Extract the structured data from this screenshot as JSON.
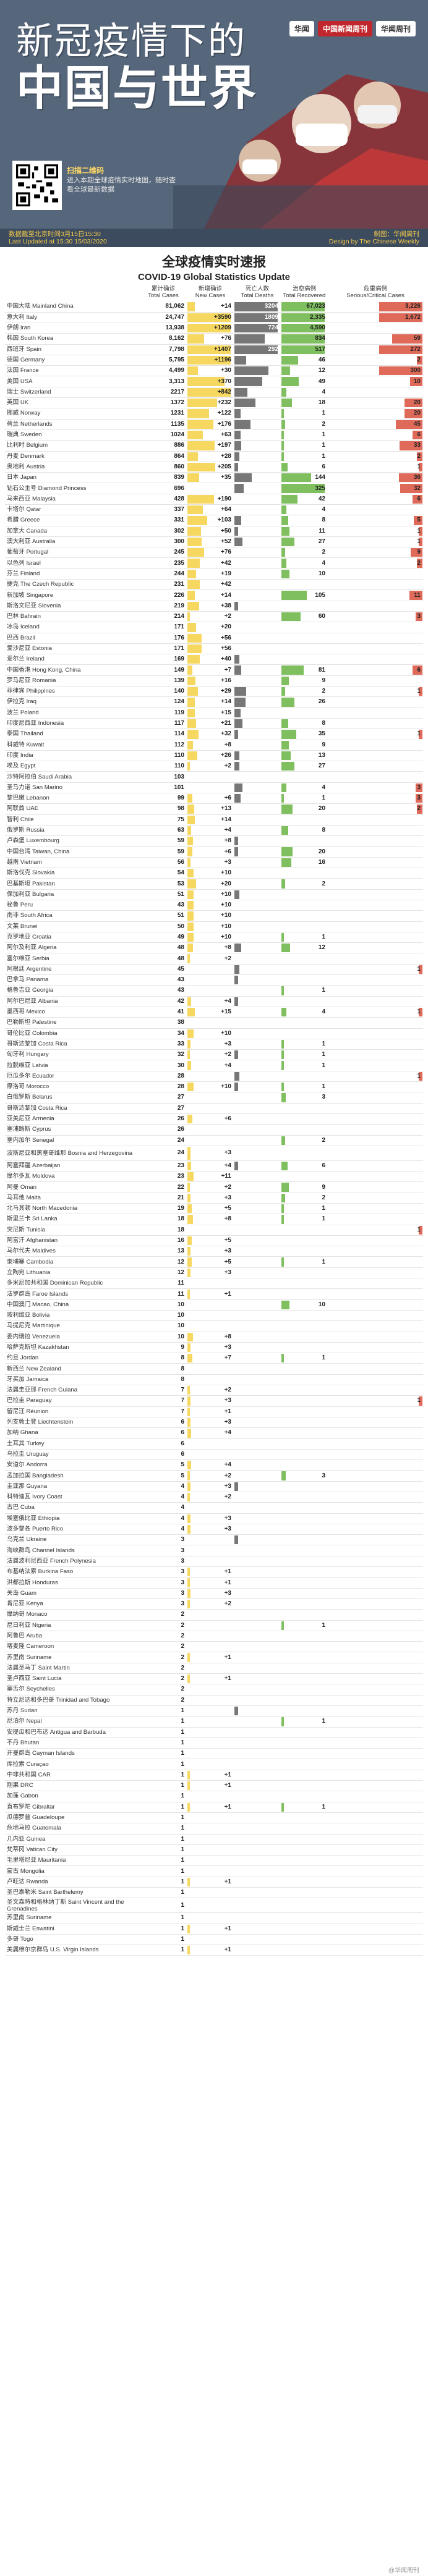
{
  "banner": {
    "title_line1": "新冠疫情下的",
    "title_line2": "中国与世界",
    "publishers": [
      "华闻",
      "中国新闻周刊",
      "华闻周刊"
    ],
    "qr_caption_head": "扫描二维码",
    "qr_caption_body": "进入本期全球疫情实时地图，随时查看全球最新数据",
    "last_update_cn": "数据截至北京时间3月15日15:30",
    "last_update_en": "Last Updated at 15:30 15/03/2020",
    "credit_cn": "制图：华闻周刊",
    "credit_en": "Design by The Chinese Weekly"
  },
  "heading": {
    "cn": "全球疫情实时速报",
    "en": "COVID-19 Global Statistics Update"
  },
  "columns": {
    "total": [
      "累计确诊",
      "Total Cases"
    ],
    "new": [
      "新增确诊",
      "New Cases"
    ],
    "deaths": [
      "死亡人数",
      "Total Deaths"
    ],
    "recovered": [
      "治愈病例",
      "Total Recovered"
    ],
    "serious": [
      "危重病例",
      "Serious/Critical Cases"
    ]
  },
  "colors": {
    "total": "#f6d860",
    "new": "#f6d860",
    "deaths": "#777777",
    "recovered": "#7fbf5f",
    "serious": "#e06a5a"
  },
  "footer": "@华闻周刊",
  "chart_data": {
    "type": "table",
    "title": "全球疫情实时速报 COVID-19 Global Statistics Update",
    "columns": [
      "Total Cases",
      "New Cases",
      "Total Deaths",
      "Total Recovered",
      "Serious/Critical Cases"
    ],
    "rows": [
      [
        "中国大陆 Mainland China",
        "81,062",
        "+14",
        "3204",
        "67,023",
        "3,226"
      ],
      [
        "意大利 Italy",
        "24,747",
        "+3590",
        "1809",
        "2,335",
        "1,672"
      ],
      [
        "伊朗 Iran",
        "13,938",
        "+1209",
        "724",
        "4,590",
        ""
      ],
      [
        "韩国 South Korea",
        "8,162",
        "+76",
        "75",
        "834",
        "59"
      ],
      [
        "西班牙 Spain",
        "7,798",
        "+1407",
        "292",
        "517",
        "272"
      ],
      [
        "德国 Germany",
        "5,795",
        "+1196",
        "11",
        "46",
        "2"
      ],
      [
        "法国 France",
        "4,499",
        "+30",
        "91",
        "12",
        "300"
      ],
      [
        "美国 USA",
        "3,313",
        "+370",
        "63",
        "49",
        "10"
      ],
      [
        "瑞士 Switzerland",
        "2217",
        "+842",
        "14",
        "4",
        ""
      ],
      [
        "英国 UK",
        "1372",
        "+232",
        "35",
        "18",
        "20"
      ],
      [
        "挪威 Norway",
        "1231",
        "+122",
        "3",
        "1",
        "20"
      ],
      [
        "荷兰 Netherlands",
        "1135",
        "+176",
        "20",
        "2",
        "45"
      ],
      [
        "瑞典 Sweden",
        "1024",
        "+63",
        "3",
        "1",
        "6"
      ],
      [
        "比利时 Belgium",
        "886",
        "+197",
        "4",
        "1",
        "33"
      ],
      [
        "丹麦 Denmark",
        "864",
        "+28",
        "2",
        "1",
        "2"
      ],
      [
        "奥地利 Austria",
        "860",
        "+205",
        "1",
        "6",
        "1"
      ],
      [
        "日本 Japan",
        "839",
        "+35",
        "24",
        "144",
        "36"
      ],
      [
        "钻石公主号 Diamond Princess",
        "696",
        "",
        "7",
        "325",
        "32"
      ],
      [
        "马来西亚 Malaysia",
        "428",
        "+190",
        "",
        "42",
        "6"
      ],
      [
        "卡塔尔 Qatar",
        "337",
        "+64",
        "",
        "4",
        ""
      ],
      [
        "希腊 Greece",
        "331",
        "+103",
        "4",
        "8",
        "5"
      ],
      [
        "加拿大 Canada",
        "302",
        "+50",
        "1",
        "11",
        "1"
      ],
      [
        "澳大利亚 Australia",
        "300",
        "+52",
        "5",
        "27",
        "1"
      ],
      [
        "葡萄牙 Portugal",
        "245",
        "+76",
        "",
        "2",
        "9"
      ],
      [
        "以色列 Israel",
        "235",
        "+42",
        "",
        "4",
        "2"
      ],
      [
        "芬兰 Finland",
        "244",
        "+19",
        "",
        "10",
        ""
      ],
      [
        "捷克 The Czech Republic",
        "231",
        "+42",
        "",
        "",
        ""
      ],
      [
        "新加坡 Singapore",
        "226",
        "+14",
        "",
        "105",
        "11"
      ],
      [
        "斯洛文尼亚 Slovenia",
        "219",
        "+38",
        "1",
        "",
        ""
      ],
      [
        "巴林 Bahrain",
        "214",
        "+2",
        "",
        "60",
        "3"
      ],
      [
        "冰岛 Iceland",
        "171",
        "+20",
        "",
        "",
        ""
      ],
      [
        "巴西 Brazil",
        "176",
        "+56",
        "",
        "",
        ""
      ],
      [
        "爱沙尼亚 Estonia",
        "171",
        "+56",
        "",
        "",
        ""
      ],
      [
        "爱尔兰 Ireland",
        "169",
        "+40",
        "2",
        "",
        ""
      ],
      [
        "中国香港 Hong Kong, China",
        "149",
        "+7",
        "4",
        "81",
        "6"
      ],
      [
        "罗马尼亚 Romania",
        "139",
        "+16",
        "",
        "9",
        ""
      ],
      [
        "菲律宾 Philippines",
        "140",
        "+29",
        "11",
        "2",
        "1"
      ],
      [
        "伊拉克 Iraq",
        "124",
        "+14",
        "10",
        "26",
        ""
      ],
      [
        "波兰 Poland",
        "119",
        "+15",
        "3",
        "",
        ""
      ],
      [
        "印度尼西亚 Indonesia",
        "117",
        "+21",
        "5",
        "8",
        ""
      ],
      [
        "泰国 Thailand",
        "114",
        "+32",
        "1",
        "35",
        "1"
      ],
      [
        "科威特 Kuwait",
        "112",
        "+8",
        "",
        "9",
        ""
      ],
      [
        "印度 India",
        "110",
        "+26",
        "2",
        "13",
        ""
      ],
      [
        "埃及 Egypt",
        "110",
        "+2",
        "2",
        "27",
        ""
      ],
      [
        "沙特阿拉伯 Saudi Arabia",
        "103",
        "",
        "",
        "",
        ""
      ],
      [
        "圣马力诺 San Marino",
        "101",
        "",
        "5",
        "4",
        "3"
      ],
      [
        "黎巴嫩 Lebanon",
        "99",
        "+6",
        "3",
        "1",
        "3"
      ],
      [
        "阿联酋 UAE",
        "98",
        "+13",
        "",
        "20",
        "2"
      ],
      [
        "智利 Chile",
        "75",
        "+14",
        "",
        "",
        ""
      ],
      [
        "俄罗斯 Russia",
        "63",
        "+4",
        "",
        "8",
        ""
      ],
      [
        "卢森堡 Luxembourg",
        "59",
        "+8",
        "1",
        "",
        ""
      ],
      [
        "中国台湾 Taiwan, China",
        "59",
        "+6",
        "1",
        "20",
        ""
      ],
      [
        "越南 Vietnam",
        "56",
        "+3",
        "",
        "16",
        ""
      ],
      [
        "斯洛伐克 Slovakia",
        "54",
        "+10",
        "",
        "",
        ""
      ],
      [
        "巴基斯坦 Pakistan",
        "53",
        "+20",
        "",
        "2",
        ""
      ],
      [
        "保加利亚 Bulgaria",
        "51",
        "+10",
        "2",
        "",
        ""
      ],
      [
        "秘鲁 Peru",
        "43",
        "+10",
        "",
        "",
        ""
      ],
      [
        "南非 South Africa",
        "51",
        "+10",
        "",
        "",
        ""
      ],
      [
        "文莱 Brunei",
        "50",
        "+10",
        "",
        "",
        ""
      ],
      [
        "克罗地亚 Croatia",
        "49",
        "+10",
        "",
        "1",
        ""
      ],
      [
        "阿尔及利亚 Algeria",
        "48",
        "+8",
        "4",
        "12",
        ""
      ],
      [
        "塞尔维亚 Serbia",
        "48",
        "+2",
        "",
        "",
        ""
      ],
      [
        "阿根廷 Argentine",
        "45",
        "",
        "2",
        "",
        "1"
      ],
      [
        "巴拿马 Panama",
        "43",
        "",
        "1",
        "",
        ""
      ],
      [
        "格鲁吉亚 Georgia",
        "43",
        "",
        "",
        "1",
        ""
      ],
      [
        "阿尔巴尼亚 Albania",
        "42",
        "+4",
        "1",
        "",
        ""
      ],
      [
        "墨西哥 Mexico",
        "41",
        "+15",
        "",
        "4",
        "1"
      ],
      [
        "巴勒斯坦 Palestine",
        "38",
        "",
        "",
        "",
        ""
      ],
      [
        "哥伦比亚 Colombia",
        "34",
        "+10",
        "",
        "",
        ""
      ],
      [
        "哥斯达黎加 Costa Rica",
        "33",
        "+3",
        "",
        "1",
        ""
      ],
      [
        "匈牙利 Hungary",
        "32",
        "+2",
        "1",
        "1",
        ""
      ],
      [
        "拉脱维亚 Latvia",
        "30",
        "+4",
        "",
        "1",
        ""
      ],
      [
        "厄瓜多尔 Ecuador",
        "28",
        "",
        "2",
        "",
        "1"
      ],
      [
        "摩洛哥 Morocco",
        "28",
        "+10",
        "1",
        "1",
        ""
      ],
      [
        "白俄罗斯 Belarus",
        "27",
        "",
        "",
        "3",
        ""
      ],
      [
        "哥斯达黎加 Costa Rica",
        "27",
        "",
        "",
        "",
        ""
      ],
      [
        "亚美尼亚 Armenia",
        "26",
        "+6",
        "",
        "",
        ""
      ],
      [
        "塞浦路斯 Cyprus",
        "26",
        "",
        "",
        "",
        ""
      ],
      [
        "塞内加尔 Senegal",
        "24",
        "",
        "",
        "2",
        ""
      ],
      [
        "波斯尼亚和黑塞哥维那 Bosnia and Herzegovina",
        "24",
        "+3",
        "",
        "",
        ""
      ],
      [
        "阿塞拜疆 Azerbaijan",
        "23",
        "+4",
        "1",
        "6",
        ""
      ],
      [
        "摩尔多瓦 Moldova",
        "23",
        "+11",
        "",
        "",
        ""
      ],
      [
        "阿曼 Oman",
        "22",
        "+2",
        "",
        "9",
        ""
      ],
      [
        "马耳他 Malta",
        "21",
        "+3",
        "",
        "2",
        ""
      ],
      [
        "北马其顿 North Macedonia",
        "19",
        "+5",
        "",
        "1",
        ""
      ],
      [
        "斯里兰卡 Sri Lanka",
        "18",
        "+8",
        "",
        "1",
        ""
      ],
      [
        "突尼斯 Tunisia",
        "18",
        "",
        "",
        "",
        "1"
      ],
      [
        "阿富汗 Afghanistan",
        "16",
        "+5",
        "",
        "",
        ""
      ],
      [
        "马尔代夫 Maldives",
        "13",
        "+3",
        "",
        "",
        ""
      ],
      [
        "柬埔寨 Cambodia",
        "12",
        "+5",
        "",
        "1",
        ""
      ],
      [
        "立陶宛 Lithuania",
        "12",
        "+3",
        "",
        "",
        ""
      ],
      [
        "多米尼加共和国 Dominican Republic",
        "11",
        "",
        "",
        "",
        ""
      ],
      [
        "法罗群岛 Faroe Islands",
        "11",
        "+1",
        "",
        "",
        ""
      ],
      [
        "中国澳门 Macao, China",
        "10",
        "",
        "",
        "10",
        ""
      ],
      [
        "玻利维亚 Bolivia",
        "10",
        "",
        "",
        "",
        ""
      ],
      [
        "马提尼克 Martinique",
        "10",
        "",
        "",
        "",
        ""
      ],
      [
        "委内瑞拉 Venezuela",
        "10",
        "+8",
        "",
        "",
        ""
      ],
      [
        "哈萨克斯坦 Kazakhstan",
        "9",
        "+3",
        "",
        "",
        ""
      ],
      [
        "约旦 Jordan",
        "8",
        "+7",
        "",
        "1",
        ""
      ],
      [
        "新西兰 New Zealand",
        "8",
        "",
        "",
        "",
        ""
      ],
      [
        "牙买加 Jamaica",
        "8",
        "",
        "",
        "",
        ""
      ],
      [
        "法属圭亚那 French Guiana",
        "7",
        "+2",
        "",
        "",
        ""
      ],
      [
        "巴拉圭 Paraguay",
        "7",
        "+3",
        "",
        "",
        "1"
      ],
      [
        "留尼汪 Réunion",
        "7",
        "+1",
        "",
        "",
        ""
      ],
      [
        "列支敦士登 Liechtenstein",
        "6",
        "+3",
        "",
        "",
        ""
      ],
      [
        "加纳 Ghana",
        "6",
        "+4",
        "",
        "",
        ""
      ],
      [
        "土耳其 Turkey",
        "6",
        "",
        "",
        "",
        ""
      ],
      [
        "乌拉圭 Uruguay",
        "6",
        "",
        "",
        "",
        ""
      ],
      [
        "安道尔 Andorra",
        "5",
        "+4",
        "",
        "",
        ""
      ],
      [
        "孟加拉国 Bangladesh",
        "5",
        "+2",
        "",
        "3",
        ""
      ],
      [
        "圭亚那 Guyana",
        "4",
        "+3",
        "1",
        "",
        ""
      ],
      [
        "科特迪瓦 Ivory Coast",
        "4",
        "+2",
        "",
        "",
        ""
      ],
      [
        "古巴 Cuba",
        "4",
        "",
        "",
        "",
        ""
      ],
      [
        "埃塞俄比亚 Ethiopia",
        "4",
        "+3",
        "",
        "",
        ""
      ],
      [
        "波多黎各 Puerto Rico",
        "4",
        "+3",
        "",
        "",
        ""
      ],
      [
        "乌克兰 Ukraine",
        "3",
        "",
        "1",
        "",
        ""
      ],
      [
        "海峡群岛 Channel Islands",
        "3",
        "",
        "",
        "",
        ""
      ],
      [
        "法属波利尼西亚 French Polynesia",
        "3",
        "",
        "",
        "",
        ""
      ],
      [
        "布基纳法索 Burkina Faso",
        "3",
        "+1",
        "",
        "",
        ""
      ],
      [
        "洪都拉斯 Honduras",
        "3",
        "+1",
        "",
        "",
        ""
      ],
      [
        "关岛 Guam",
        "3",
        "+3",
        "",
        "",
        ""
      ],
      [
        "肯尼亚 Kenya",
        "3",
        "+2",
        "",
        "",
        ""
      ],
      [
        "摩纳哥 Monaco",
        "2",
        "",
        "",
        "",
        ""
      ],
      [
        "尼日利亚 Nigeria",
        "2",
        "",
        "",
        "1",
        ""
      ],
      [
        "阿鲁巴 Aruba",
        "2",
        "",
        "",
        "",
        ""
      ],
      [
        "喀麦隆 Cameroon",
        "2",
        "",
        "",
        "",
        ""
      ],
      [
        "苏里南 Suriname",
        "2",
        "+1",
        "",
        "",
        ""
      ],
      [
        "法属圣马丁 Saint Martin",
        "2",
        "",
        "",
        "",
        ""
      ],
      [
        "圣卢西亚 Saint Lucia",
        "2",
        "+1",
        "",
        "",
        ""
      ],
      [
        "塞舌尔 Seychelles",
        "2",
        "",
        "",
        "",
        ""
      ],
      [
        "特立尼达和多巴哥 Trinidad and Tobago",
        "2",
        "",
        "",
        "",
        ""
      ],
      [
        "苏丹 Sudan",
        "1",
        "",
        "1",
        "",
        ""
      ],
      [
        "尼泊尔 Nepal",
        "1",
        "",
        "",
        "1",
        ""
      ],
      [
        "安提瓜和巴布达 Antigua and Barbuda",
        "1",
        "",
        "",
        "",
        ""
      ],
      [
        "不丹 Bhutan",
        "1",
        "",
        "",
        "",
        ""
      ],
      [
        "开曼群岛 Cayman Islands",
        "1",
        "",
        "",
        "",
        ""
      ],
      [
        "库拉索 Curaçao",
        "1",
        "",
        "",
        "",
        ""
      ],
      [
        "中非共和国 CAR",
        "1",
        "+1",
        "",
        "",
        ""
      ],
      [
        "刚果 DRC",
        "1",
        "+1",
        "",
        "",
        ""
      ],
      [
        "加蓬 Gabon",
        "1",
        "",
        "",
        "",
        ""
      ],
      [
        "直布罗陀 Gibraltar",
        "1",
        "+1",
        "",
        "1",
        ""
      ],
      [
        "瓜德罗普 Guadeloupe",
        "1",
        "",
        "",
        "",
        ""
      ],
      [
        "危地马拉 Guatemala",
        "1",
        "",
        "",
        "",
        ""
      ],
      [
        "几内亚 Guinea",
        "1",
        "",
        "",
        "",
        ""
      ],
      [
        "梵蒂冈 Vatican City",
        "1",
        "",
        "",
        "",
        ""
      ],
      [
        "毛里塔尼亚 Mauritania",
        "1",
        "",
        "",
        "",
        ""
      ],
      [
        "蒙古 Mongolia",
        "1",
        "",
        "",
        "",
        ""
      ],
      [
        "卢旺达 Rwanda",
        "1",
        "+1",
        "",
        "",
        ""
      ],
      [
        "圣巴泰勒米 Saint Barthelemy",
        "1",
        "",
        "",
        "",
        ""
      ],
      [
        "圣文森特和格林纳丁斯 Saint Vincent and the Grenadines",
        "1",
        "",
        "",
        "",
        ""
      ],
      [
        "苏里南 Suriname",
        "1",
        "",
        "",
        "",
        ""
      ],
      [
        "斯威士兰 Eswatini",
        "1",
        "+1",
        "",
        "",
        ""
      ],
      [
        "多哥 Togo",
        "1",
        "",
        "",
        "",
        ""
      ],
      [
        "美属维尔京群岛 U.S. Virgin Islands",
        "1",
        "+1",
        "",
        "",
        ""
      ]
    ]
  }
}
